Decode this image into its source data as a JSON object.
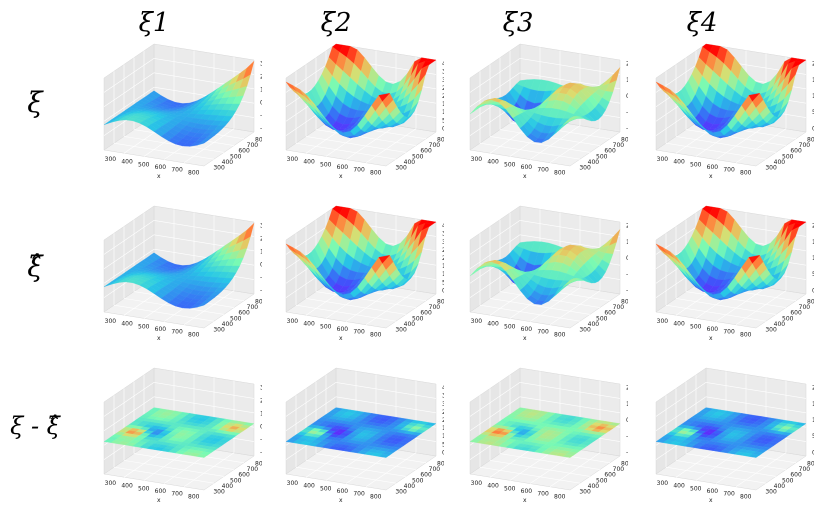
{
  "columns": [
    "ξ1",
    "ξ2",
    "ξ3",
    "ξ4"
  ],
  "rows": [
    "ξ",
    "ξ̂",
    "ξ - ξ̂"
  ],
  "axes": {
    "x_label": "x",
    "y_label": "y",
    "x_ticks": [
      "300",
      "400",
      "500",
      "600",
      "700",
      "800"
    ],
    "y_ticks": [
      "300",
      "400",
      "500",
      "600",
      "700",
      "800"
    ]
  },
  "chart_data": [
    {
      "type": "surface3d",
      "column": "ξ1",
      "row": "ξ",
      "pattern": "ridge",
      "x_range": [
        250,
        800
      ],
      "y_range": [
        250,
        850
      ],
      "z_ticks": [
        "30",
        "20",
        "10",
        "0",
        "-10",
        "-20"
      ],
      "zlim": [
        -28,
        35
      ],
      "colormap": "rainbow"
    },
    {
      "type": "surface3d",
      "column": "ξ2",
      "row": "ξ",
      "pattern": "bowl",
      "x_range": [
        250,
        800
      ],
      "y_range": [
        250,
        850
      ],
      "z_ticks": [
        "40",
        "35",
        "30",
        "25",
        "20",
        "15",
        "10",
        "5",
        "0"
      ],
      "zlim": [
        0,
        40
      ],
      "colormap": "rainbow"
    },
    {
      "type": "surface3d",
      "column": "ξ3",
      "row": "ξ",
      "pattern": "saddle",
      "x_range": [
        250,
        800
      ],
      "y_range": [
        250,
        850
      ],
      "z_ticks": [
        "200",
        "100",
        "0",
        "-100",
        "-200"
      ],
      "zlim": [
        -250,
        250
      ],
      "colormap": "rainbow"
    },
    {
      "type": "surface3d",
      "column": "ξ4",
      "row": "ξ",
      "pattern": "bowl",
      "x_range": [
        250,
        800
      ],
      "y_range": [
        250,
        850
      ],
      "z_ticks": [
        "200",
        "150",
        "100",
        "50",
        "0"
      ],
      "zlim": [
        0,
        230
      ],
      "colormap": "rainbow"
    },
    {
      "type": "surface3d",
      "column": "ξ1",
      "row": "ξ̂",
      "pattern": "ridge",
      "x_range": [
        250,
        800
      ],
      "y_range": [
        250,
        850
      ],
      "z_ticks": [
        "30",
        "20",
        "10",
        "0",
        "-10",
        "-20"
      ],
      "zlim": [
        -28,
        35
      ],
      "colormap": "rainbow"
    },
    {
      "type": "surface3d",
      "column": "ξ2",
      "row": "ξ̂",
      "pattern": "bowl",
      "x_range": [
        250,
        800
      ],
      "y_range": [
        250,
        850
      ],
      "z_ticks": [
        "40",
        "35",
        "30",
        "25",
        "20",
        "15",
        "10",
        "5",
        "0"
      ],
      "zlim": [
        0,
        40
      ],
      "colormap": "rainbow"
    },
    {
      "type": "surface3d",
      "column": "ξ3",
      "row": "ξ̂",
      "pattern": "saddle",
      "x_range": [
        250,
        800
      ],
      "y_range": [
        250,
        850
      ],
      "z_ticks": [
        "200",
        "100",
        "0",
        "-100",
        "-200"
      ],
      "zlim": [
        -250,
        250
      ],
      "colormap": "rainbow"
    },
    {
      "type": "surface3d",
      "column": "ξ4",
      "row": "ξ̂",
      "pattern": "bowl",
      "x_range": [
        250,
        800
      ],
      "y_range": [
        250,
        850
      ],
      "z_ticks": [
        "200",
        "150",
        "100",
        "50",
        "0"
      ],
      "zlim": [
        0,
        230
      ],
      "colormap": "rainbow"
    },
    {
      "type": "surface3d",
      "column": "ξ1",
      "row": "ξ - ξ̂",
      "pattern": "flat",
      "base_level": 0.5,
      "x_range": [
        250,
        800
      ],
      "y_range": [
        250,
        850
      ],
      "z_ticks": [
        "30",
        "20",
        "10",
        "0",
        "-10",
        "-20"
      ],
      "zlim": [
        -28,
        35
      ],
      "colormap": "rainbow"
    },
    {
      "type": "surface3d",
      "column": "ξ2",
      "row": "ξ - ξ̂",
      "pattern": "flat",
      "base_level": 0.3,
      "x_range": [
        250,
        800
      ],
      "y_range": [
        250,
        850
      ],
      "z_ticks": [
        "40",
        "35",
        "30",
        "25",
        "20",
        "15",
        "10",
        "5",
        "0"
      ],
      "zlim": [
        0,
        40
      ],
      "colormap": "rainbow"
    },
    {
      "type": "surface3d",
      "column": "ξ3",
      "row": "ξ - ξ̂",
      "pattern": "flat",
      "base_level": 0.55,
      "x_range": [
        250,
        800
      ],
      "y_range": [
        250,
        850
      ],
      "z_ticks": [
        "200",
        "100",
        "0",
        "-100",
        "-200"
      ],
      "zlim": [
        -250,
        250
      ],
      "colormap": "rainbow"
    },
    {
      "type": "surface3d",
      "column": "ξ4",
      "row": "ξ - ξ̂",
      "pattern": "flat",
      "base_level": 0.3,
      "x_range": [
        250,
        800
      ],
      "y_range": [
        250,
        850
      ],
      "z_ticks": [
        "200",
        "150",
        "100",
        "50",
        "0"
      ],
      "zlim": [
        0,
        230
      ],
      "colormap": "rainbow"
    }
  ]
}
